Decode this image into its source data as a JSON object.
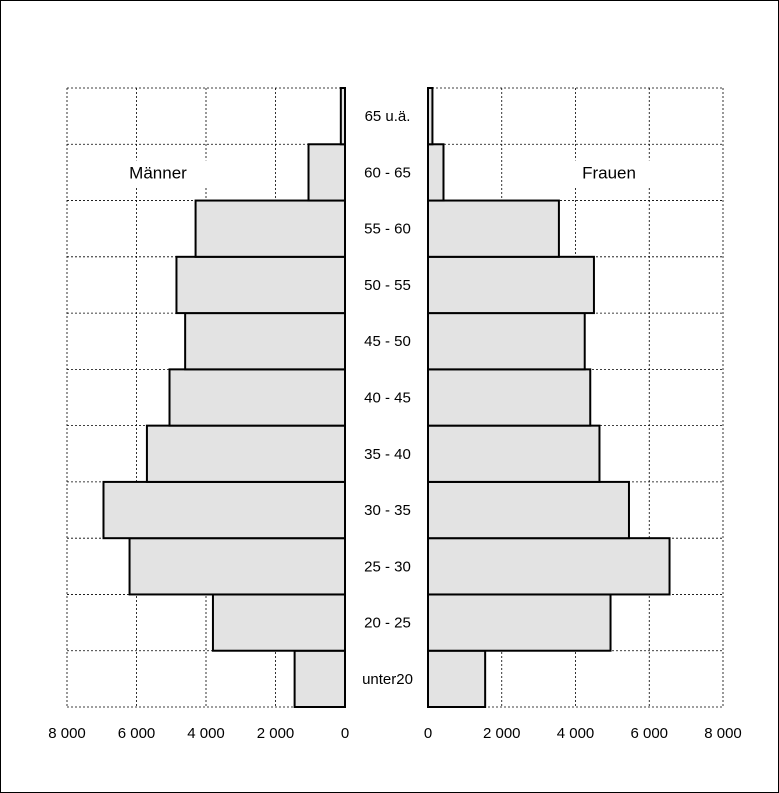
{
  "chart_data": {
    "type": "bar",
    "orientation": "horizontal",
    "layout": "population-pyramid",
    "categories": [
      "unter20",
      "20 - 25",
      "25 - 30",
      "30 - 35",
      "35 - 40",
      "40 - 45",
      "45 - 50",
      "50 - 55",
      "55 - 60",
      "60 - 65",
      "65 u.ä."
    ],
    "series": [
      {
        "name": "Männer",
        "side": "left",
        "values": [
          1450,
          3800,
          6200,
          6950,
          5700,
          5050,
          4600,
          4850,
          4300,
          1050,
          120
        ]
      },
      {
        "name": "Frauen",
        "side": "right",
        "values": [
          1550,
          4950,
          6550,
          5450,
          4650,
          4400,
          4250,
          4500,
          3550,
          420,
          120
        ]
      }
    ],
    "xlim": [
      0,
      8000
    ],
    "x_ticks": [
      0,
      2000,
      4000,
      6000,
      8000
    ],
    "left_tick_labels": [
      "8 000",
      "6 000",
      "4 000",
      "2 000",
      "0"
    ],
    "right_tick_labels": [
      "0",
      "2 000",
      "4 000",
      "6 000",
      "8 000"
    ],
    "grid": true,
    "bar_color": "#e3e3e3",
    "title": "",
    "xlabel": "",
    "ylabel": ""
  }
}
